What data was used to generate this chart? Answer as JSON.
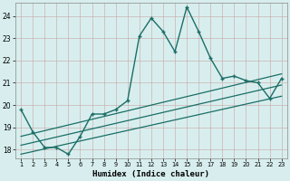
{
  "xlabel": "Humidex (Indice chaleur)",
  "bg_color": "#d8eeee",
  "grid_color": "#b8d8d8",
  "line_color": "#1a6e66",
  "xlim": [
    0.5,
    23.5
  ],
  "ylim": [
    17.6,
    24.6
  ],
  "xticks": [
    1,
    2,
    3,
    4,
    5,
    6,
    7,
    8,
    9,
    10,
    11,
    12,
    13,
    14,
    15,
    16,
    17,
    18,
    19,
    20,
    21,
    22,
    23
  ],
  "yticks": [
    18,
    19,
    20,
    21,
    22,
    23,
    24
  ],
  "series_main": {
    "x": [
      1,
      2,
      3,
      4,
      5,
      6,
      7,
      8,
      9,
      10,
      11,
      12,
      13,
      14,
      15,
      16,
      17,
      18,
      19,
      20,
      21,
      22,
      23
    ],
    "y": [
      19.8,
      18.8,
      18.1,
      18.1,
      17.8,
      18.6,
      19.6,
      19.6,
      19.8,
      20.2,
      23.1,
      23.9,
      23.3,
      22.4,
      24.4,
      23.3,
      22.1,
      21.2,
      21.3,
      21.1,
      21.0,
      20.3,
      21.2
    ]
  },
  "series_lines": [
    {
      "x": [
        1,
        23
      ],
      "y": [
        18.6,
        21.4
      ]
    },
    {
      "x": [
        1,
        23
      ],
      "y": [
        18.2,
        20.9
      ]
    },
    {
      "x": [
        1,
        23
      ],
      "y": [
        17.8,
        20.4
      ]
    }
  ]
}
